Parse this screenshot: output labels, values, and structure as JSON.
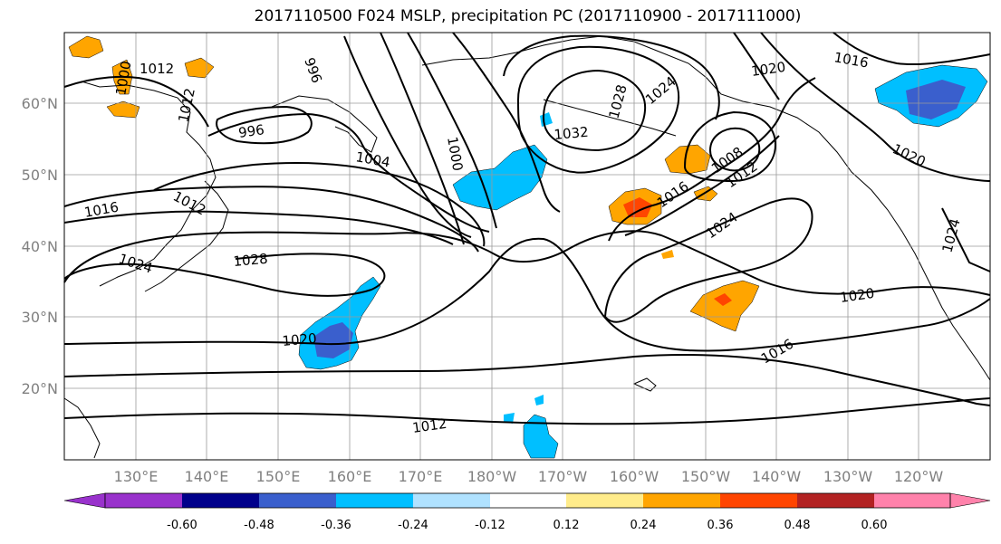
{
  "title": "2017110500 F024 MSLP, precipitation PC (2017110900 - 2017111000)",
  "lat_labels": [
    "60°N",
    "50°N",
    "40°N",
    "30°N",
    "20°N"
  ],
  "lon_labels": [
    "130°E",
    "140°E",
    "150°E",
    "160°E",
    "170°E",
    "180°W",
    "170°W",
    "160°W",
    "150°W",
    "140°W",
    "130°W",
    "120°W"
  ],
  "isobar_labels": [
    "1012",
    "1000",
    "996",
    "996",
    "1004",
    "1012",
    "1016",
    "1024",
    "1028",
    "1000",
    "1032",
    "1028",
    "1024",
    "1020",
    "1016",
    "1008",
    "1012",
    "1016",
    "1024",
    "1020",
    "1020",
    "1016",
    "1012",
    "1020",
    "1024",
    "1012"
  ],
  "colorbar": {
    "ticks": [
      "-0.60",
      "-0.48",
      "-0.36",
      "-0.24",
      "-0.12",
      "0.12",
      "0.24",
      "0.36",
      "0.48",
      "0.60"
    ],
    "colors": [
      "#9932cc",
      "#00008b",
      "#3a5fcd",
      "#00bfff",
      "#b0e2ff",
      "#ffffff",
      "#ffec8b",
      "#ffa500",
      "#ff4500",
      "#b22222",
      "#ff82ab"
    ]
  }
}
